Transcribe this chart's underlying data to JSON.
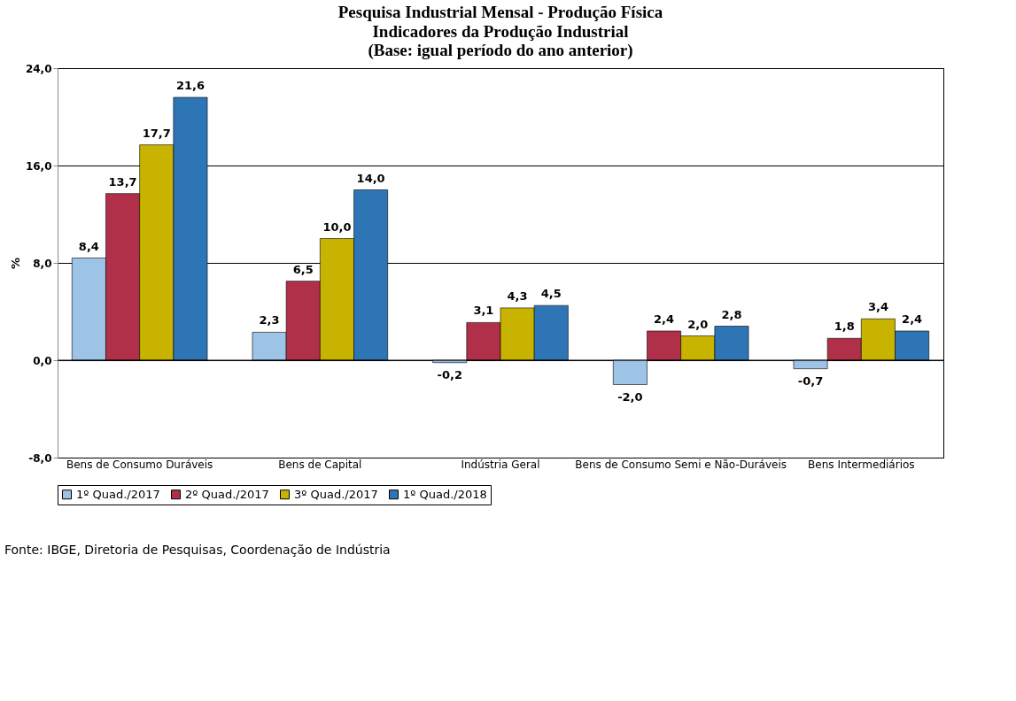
{
  "chart_data": {
    "type": "bar",
    "title": "Pesquisa Industrial Mensal - Produção Física",
    "subtitle": "Indicadores da Produção Industrial\n(Base: igual período do ano anterior)",
    "ylabel": "%",
    "categories": [
      "Bens de Consumo Duráveis",
      "Bens de Capital",
      "Indústria Geral",
      "Bens de Consumo Semi e Não-Duráveis",
      "Bens Intermediários"
    ],
    "series": [
      {
        "name": "1º Quad./2017",
        "color": "#9dc3e6",
        "values": [
          8.4,
          2.3,
          -0.2,
          -2.0,
          -0.7
        ],
        "value_labels": [
          "8,4",
          "2,3",
          "-0,2",
          "-2,0",
          "-0,7"
        ]
      },
      {
        "name": "2º Quad./2017",
        "color": "#b0304a",
        "values": [
          13.7,
          6.5,
          3.1,
          2.4,
          1.8
        ],
        "value_labels": [
          "13,7",
          "6,5",
          "3,1",
          "2,4",
          "1,8"
        ]
      },
      {
        "name": "3º Quad./2017",
        "color": "#c8b400",
        "values": [
          17.7,
          10.0,
          4.3,
          2.0,
          3.4
        ],
        "value_labels": [
          "17,7",
          "10,0",
          "4,3",
          "2,0",
          "3,4"
        ]
      },
      {
        "name": "1º Quad./2018",
        "color": "#2e75b6",
        "values": [
          21.6,
          14.0,
          4.5,
          2.8,
          2.4
        ],
        "value_labels": [
          "21,6",
          "14,0",
          "4,5",
          "2,8",
          "2,4"
        ]
      }
    ],
    "ylim": [
      -8,
      24
    ],
    "yticks": [
      {
        "value": -8,
        "label": "-8,0"
      },
      {
        "value": 0,
        "label": "0,0"
      },
      {
        "value": 8,
        "label": "8,0"
      },
      {
        "value": 16,
        "label": "16,0"
      },
      {
        "value": 24,
        "label": "24,0"
      }
    ],
    "grid": "y",
    "legend": "bottom",
    "annotations": [
      "Fonte: IBGE, Diretoria de Pesquisas, Coordenação de Indústria"
    ]
  }
}
